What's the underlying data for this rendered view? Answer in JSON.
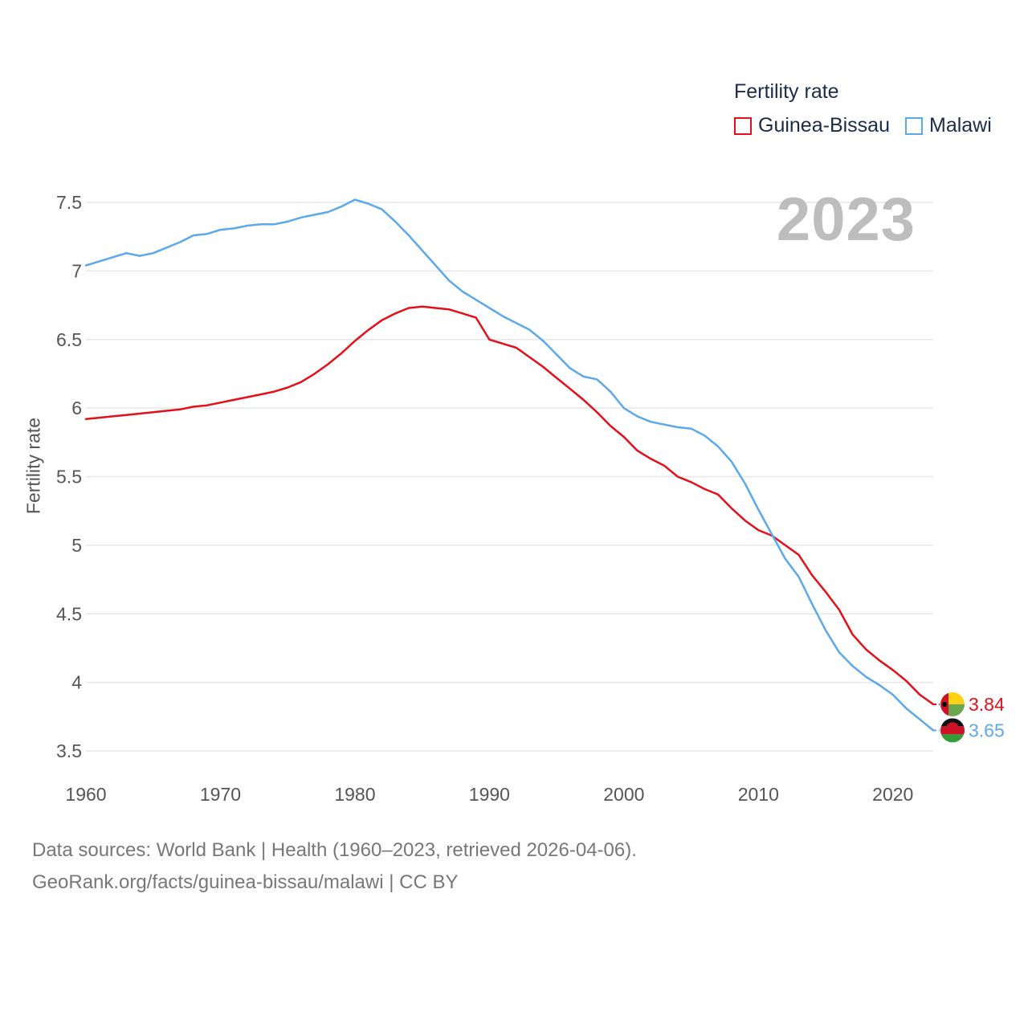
{
  "legend": {
    "title": "Fertility rate",
    "items": [
      {
        "label": "Guinea-Bissau",
        "color": "#e3101a"
      },
      {
        "label": "Malawi",
        "color": "#5ba8ea"
      }
    ]
  },
  "current_year": "2023",
  "y_axis_title": "Fertility rate",
  "end_labels": {
    "guinea_bissau": "3.84",
    "malawi": "3.65"
  },
  "footer": {
    "line1": "Data sources: World Bank | Health (1960–2023, retrieved 2026-04-06).",
    "line2": "GeoRank.org/facts/guinea-bissau/malawi | CC BY"
  },
  "chart_data": {
    "type": "line",
    "title": "Fertility rate",
    "xlabel": "",
    "ylabel": "Fertility rate",
    "xlim": [
      1960,
      2023
    ],
    "ylim": [
      3.5,
      7.5
    ],
    "x_ticks": [
      1960,
      1970,
      1980,
      1990,
      2000,
      2010,
      2020
    ],
    "y_ticks": [
      3.5,
      4,
      4.5,
      5,
      5.5,
      6,
      6.5,
      7,
      7.5
    ],
    "y_tick_labels": [
      "3.5",
      "4",
      "4.5",
      "5",
      "5.5",
      "6",
      "6.5",
      "7",
      "7.5"
    ],
    "grid": true,
    "x": [
      1960,
      1961,
      1962,
      1963,
      1964,
      1965,
      1966,
      1967,
      1968,
      1969,
      1970,
      1971,
      1972,
      1973,
      1974,
      1975,
      1976,
      1977,
      1978,
      1979,
      1980,
      1981,
      1982,
      1983,
      1984,
      1985,
      1986,
      1987,
      1988,
      1989,
      1990,
      1991,
      1992,
      1993,
      1994,
      1995,
      1996,
      1997,
      1998,
      1999,
      2000,
      2001,
      2002,
      2003,
      2004,
      2005,
      2006,
      2007,
      2008,
      2009,
      2010,
      2011,
      2012,
      2013,
      2014,
      2015,
      2016,
      2017,
      2018,
      2019,
      2020,
      2021,
      2022,
      2023
    ],
    "series": [
      {
        "name": "Guinea-Bissau",
        "color": "#e3101a",
        "values": [
          5.92,
          5.93,
          5.94,
          5.95,
          5.96,
          5.97,
          5.98,
          5.99,
          6.01,
          6.02,
          6.04,
          6.06,
          6.08,
          6.1,
          6.12,
          6.15,
          6.19,
          6.25,
          6.32,
          6.4,
          6.49,
          6.57,
          6.64,
          6.69,
          6.73,
          6.74,
          6.73,
          6.72,
          6.69,
          6.66,
          6.5,
          6.47,
          6.44,
          6.37,
          6.3,
          6.22,
          6.14,
          6.06,
          5.97,
          5.87,
          5.79,
          5.69,
          5.63,
          5.58,
          5.5,
          5.46,
          5.41,
          5.37,
          5.27,
          5.18,
          5.11,
          5.07,
          5.0,
          4.93,
          4.78,
          4.66,
          4.53,
          4.35,
          4.24,
          4.16,
          4.09,
          4.01,
          3.91,
          3.84
        ]
      },
      {
        "name": "Malawi",
        "color": "#5ba8ea",
        "values": [
          7.04,
          7.07,
          7.1,
          7.13,
          7.11,
          7.13,
          7.17,
          7.21,
          7.26,
          7.27,
          7.3,
          7.31,
          7.33,
          7.34,
          7.34,
          7.36,
          7.39,
          7.41,
          7.43,
          7.47,
          7.52,
          7.49,
          7.45,
          7.36,
          7.26,
          7.15,
          7.04,
          6.93,
          6.85,
          6.79,
          6.73,
          6.67,
          6.62,
          6.57,
          6.49,
          6.39,
          6.29,
          6.23,
          6.21,
          6.12,
          6.0,
          5.94,
          5.9,
          5.88,
          5.86,
          5.85,
          5.8,
          5.72,
          5.61,
          5.45,
          5.26,
          5.08,
          4.9,
          4.77,
          4.57,
          4.38,
          4.22,
          4.12,
          4.04,
          3.98,
          3.91,
          3.81,
          3.73,
          3.65
        ]
      }
    ]
  }
}
